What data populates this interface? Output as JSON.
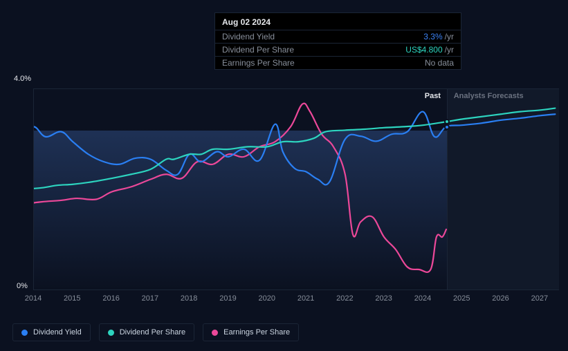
{
  "tooltip": {
    "date": "Aug 02 2024",
    "rows": {
      "dy_label": "Dividend Yield",
      "dy_value": "3.3%",
      "dy_unit": "/yr",
      "dps_label": "Dividend Per Share",
      "dps_value": "US$4.800",
      "dps_unit": "/yr",
      "eps_label": "Earnings Per Share",
      "eps_value": "No data"
    }
  },
  "chart": {
    "y_max_label": "4.0%",
    "y_min_label": "0%",
    "past_label": "Past",
    "forecast_label": "Analysts Forecasts",
    "x_start_year": 2014,
    "x_end_year": 2027.5,
    "x_ticks": [
      2014,
      2015,
      2016,
      2017,
      2018,
      2019,
      2020,
      2021,
      2022,
      2023,
      2024,
      2025,
      2026,
      2027
    ],
    "now_x": 2024.6,
    "y_domain": [
      0,
      4.0
    ],
    "series": {
      "dividend_yield": {
        "color": "#2a7ff3",
        "points": [
          [
            2013.7,
            3.1
          ],
          [
            2014.0,
            3.25
          ],
          [
            2014.3,
            3.05
          ],
          [
            2014.7,
            3.15
          ],
          [
            2015.0,
            2.95
          ],
          [
            2015.4,
            2.7
          ],
          [
            2015.8,
            2.55
          ],
          [
            2016.2,
            2.5
          ],
          [
            2016.6,
            2.62
          ],
          [
            2017.0,
            2.6
          ],
          [
            2017.4,
            2.38
          ],
          [
            2017.7,
            2.3
          ],
          [
            2018.0,
            2.7
          ],
          [
            2018.3,
            2.55
          ],
          [
            2018.7,
            2.75
          ],
          [
            2019.0,
            2.65
          ],
          [
            2019.4,
            2.8
          ],
          [
            2019.8,
            2.58
          ],
          [
            2020.2,
            3.3
          ],
          [
            2020.4,
            2.75
          ],
          [
            2020.7,
            2.42
          ],
          [
            2021.0,
            2.35
          ],
          [
            2021.3,
            2.2
          ],
          [
            2021.6,
            2.15
          ],
          [
            2022.0,
            3.0
          ],
          [
            2022.4,
            3.06
          ],
          [
            2022.8,
            2.96
          ],
          [
            2023.2,
            3.1
          ],
          [
            2023.6,
            3.15
          ],
          [
            2024.0,
            3.55
          ],
          [
            2024.3,
            3.05
          ],
          [
            2024.6,
            3.25
          ],
          [
            2025.0,
            3.28
          ],
          [
            2025.5,
            3.32
          ],
          [
            2026.0,
            3.38
          ],
          [
            2026.5,
            3.42
          ],
          [
            2027.0,
            3.47
          ],
          [
            2027.4,
            3.5
          ]
        ]
      },
      "dividend_per_share": {
        "color": "#2dd4bf",
        "points": [
          [
            2013.7,
            2.0
          ],
          [
            2014.2,
            2.03
          ],
          [
            2014.6,
            2.08
          ],
          [
            2015.0,
            2.1
          ],
          [
            2015.5,
            2.15
          ],
          [
            2016.0,
            2.22
          ],
          [
            2016.5,
            2.3
          ],
          [
            2017.0,
            2.4
          ],
          [
            2017.4,
            2.6
          ],
          [
            2017.6,
            2.6
          ],
          [
            2018.0,
            2.7
          ],
          [
            2018.3,
            2.7
          ],
          [
            2018.6,
            2.8
          ],
          [
            2019.0,
            2.8
          ],
          [
            2019.5,
            2.85
          ],
          [
            2020.0,
            2.85
          ],
          [
            2020.4,
            2.95
          ],
          [
            2020.8,
            2.95
          ],
          [
            2021.2,
            3.02
          ],
          [
            2021.5,
            3.15
          ],
          [
            2022.0,
            3.18
          ],
          [
            2022.5,
            3.2
          ],
          [
            2023.0,
            3.23
          ],
          [
            2023.5,
            3.25
          ],
          [
            2024.0,
            3.28
          ],
          [
            2024.6,
            3.35
          ],
          [
            2025.0,
            3.4
          ],
          [
            2025.5,
            3.45
          ],
          [
            2026.0,
            3.5
          ],
          [
            2026.5,
            3.55
          ],
          [
            2027.0,
            3.58
          ],
          [
            2027.4,
            3.62
          ]
        ]
      },
      "earnings_per_share": {
        "color": "#ec4899",
        "points": [
          [
            2013.7,
            1.7
          ],
          [
            2014.2,
            1.75
          ],
          [
            2014.7,
            1.78
          ],
          [
            2015.1,
            1.82
          ],
          [
            2015.6,
            1.8
          ],
          [
            2016.0,
            1.95
          ],
          [
            2016.5,
            2.05
          ],
          [
            2017.0,
            2.2
          ],
          [
            2017.4,
            2.3
          ],
          [
            2017.8,
            2.22
          ],
          [
            2018.2,
            2.55
          ],
          [
            2018.6,
            2.5
          ],
          [
            2019.0,
            2.7
          ],
          [
            2019.4,
            2.65
          ],
          [
            2019.8,
            2.85
          ],
          [
            2020.2,
            2.95
          ],
          [
            2020.6,
            3.25
          ],
          [
            2020.9,
            3.7
          ],
          [
            2021.1,
            3.55
          ],
          [
            2021.4,
            3.1
          ],
          [
            2021.7,
            2.85
          ],
          [
            2022.0,
            2.3
          ],
          [
            2022.2,
            1.1
          ],
          [
            2022.4,
            1.35
          ],
          [
            2022.7,
            1.45
          ],
          [
            2023.0,
            1.05
          ],
          [
            2023.3,
            0.8
          ],
          [
            2023.6,
            0.45
          ],
          [
            2023.9,
            0.4
          ],
          [
            2024.2,
            0.4
          ],
          [
            2024.35,
            1.05
          ],
          [
            2024.5,
            1.05
          ],
          [
            2024.6,
            1.2
          ]
        ]
      }
    },
    "markers": {
      "dy": {
        "x": 2024.6,
        "y": 3.25,
        "color": "#2a7ff3"
      },
      "dps": {
        "x": 2024.6,
        "y": 3.35,
        "color": "#2dd4bf"
      }
    }
  },
  "legend": {
    "items": [
      {
        "label": "Dividend Yield",
        "color": "#2a7ff3"
      },
      {
        "label": "Dividend Per Share",
        "color": "#2dd4bf"
      },
      {
        "label": "Earnings Per Share",
        "color": "#ec4899"
      }
    ]
  }
}
